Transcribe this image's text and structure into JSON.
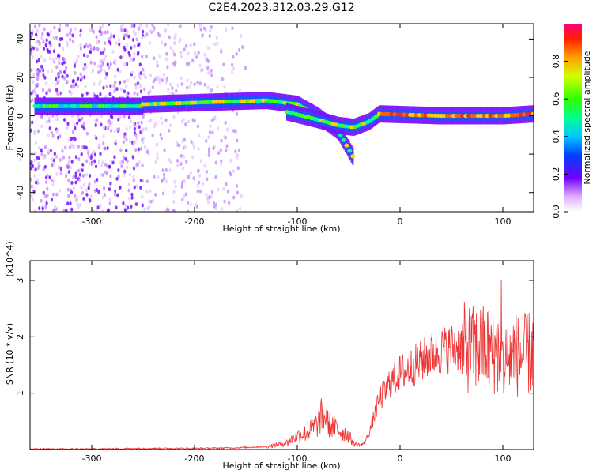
{
  "title": "C2E4.2023.312.03.29.G12",
  "chart_data": [
    {
      "type": "heatmap",
      "xlabel": "Height of straight line (km)",
      "ylabel": "Frequency (Hz)",
      "xlim": [
        -360,
        130
      ],
      "ylim": [
        -50,
        48
      ],
      "xticks": [
        -300,
        -200,
        -100,
        0,
        100
      ],
      "yticks": [
        -40,
        -20,
        0,
        20,
        40
      ],
      "colorbar": {
        "label": "Normalized spectral amplitude",
        "range": [
          0,
          1
        ],
        "ticks": [
          0.0,
          0.2,
          0.4,
          0.6,
          0.8
        ]
      },
      "ridges": [
        {
          "x": [
            -355,
            -250
          ],
          "freq": [
            5,
            5
          ],
          "amplitude": 0.4
        },
        {
          "x": [
            -250,
            -130
          ],
          "freq": [
            6,
            8
          ],
          "amplitude": 0.6
        },
        {
          "x": [
            -130,
            -100,
            -80,
            -60,
            -45
          ],
          "freq": [
            8,
            6,
            0,
            -8,
            -22
          ],
          "amplitude": 0.5
        },
        {
          "x": [
            -110,
            -80,
            -60,
            -45,
            -30,
            -20
          ],
          "freq": [
            2,
            -2,
            -5,
            -6,
            -3,
            1
          ],
          "amplitude": 0.55
        },
        {
          "x": [
            -20,
            40,
            100,
            130
          ],
          "freq": [
            1,
            0,
            0,
            1
          ],
          "amplitude": 0.85
        }
      ],
      "noise_band": {
        "x": [
          -360,
          -150
        ],
        "freq": [
          -50,
          48
        ]
      }
    },
    {
      "type": "line",
      "xlabel": "Height of straight line (km)",
      "ylabel": "SNR (10 * v/v)",
      "yexponent": "(x10^4)",
      "xlim": [
        -360,
        130
      ],
      "ylim": [
        0,
        3.35
      ],
      "xticks": [
        -300,
        -200,
        -100,
        0,
        100
      ],
      "yticks": [
        1,
        2,
        3
      ],
      "series": [
        {
          "color": "#ee3333",
          "x": [
            -360,
            -300,
            -250,
            -200,
            -160,
            -130,
            -110,
            -100,
            -90,
            -80,
            -75,
            -70,
            -60,
            -50,
            -45,
            -40,
            -35,
            -30,
            -25,
            -20,
            -15,
            -10,
            -5,
            0,
            10,
            20,
            30,
            40,
            50,
            60,
            70,
            80,
            90,
            95,
            100,
            105,
            110,
            120,
            130
          ],
          "y": [
            0.01,
            0.01,
            0.02,
            0.02,
            0.03,
            0.05,
            0.12,
            0.25,
            0.3,
            0.45,
            0.65,
            0.45,
            0.35,
            0.25,
            0.1,
            0.08,
            0.1,
            0.3,
            0.6,
            0.9,
            1.0,
            1.2,
            1.25,
            1.35,
            1.45,
            1.55,
            1.7,
            1.75,
            1.8,
            1.82,
            1.78,
            1.8,
            1.75,
            1.7,
            1.5,
            1.6,
            1.7,
            1.65,
            1.75
          ]
        }
      ]
    }
  ]
}
